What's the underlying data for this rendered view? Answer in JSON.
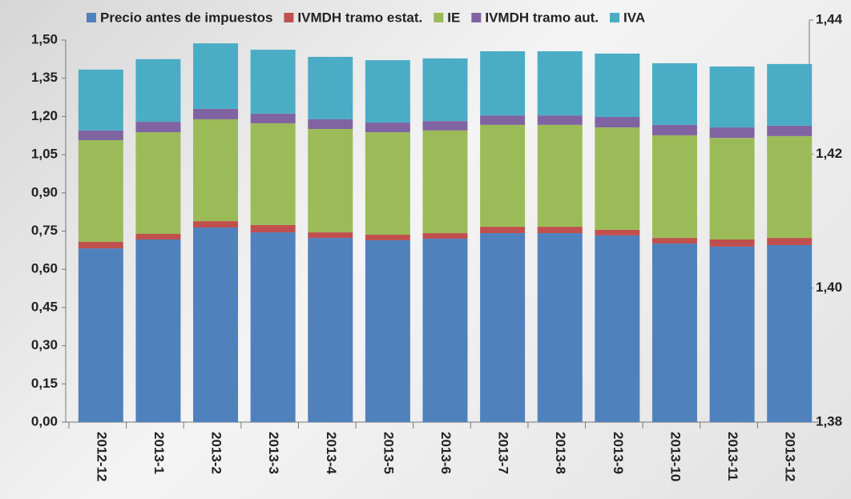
{
  "chart_data": {
    "type": "stacked_bar",
    "categories": [
      "2012-12",
      "2013-1",
      "2013-2",
      "2013-3",
      "2013-4",
      "2013-5",
      "2013-6",
      "2013-7",
      "2013-8",
      "2013-9",
      "2013-10",
      "2013-11",
      "2013-12"
    ],
    "series": [
      {
        "name": "Precio antes de impuestos",
        "color": "#4f81bd",
        "values": [
          0.682,
          0.717,
          0.764,
          0.745,
          0.723,
          0.714,
          0.72,
          0.742,
          0.742,
          0.733,
          0.701,
          0.689,
          0.695
        ]
      },
      {
        "name": "IVMDH tramo estat.",
        "color": "#c0504d",
        "values": [
          0.026,
          0.022,
          0.025,
          0.029,
          0.022,
          0.022,
          0.022,
          0.025,
          0.025,
          0.022,
          0.022,
          0.028,
          0.028
        ]
      },
      {
        "name": "IE",
        "color": "#9bbb59",
        "values": [
          0.399,
          0.399,
          0.4,
          0.399,
          0.406,
          0.402,
          0.403,
          0.4,
          0.4,
          0.402,
          0.403,
          0.399,
          0.4
        ]
      },
      {
        "name": "IVMDH tramo aut.",
        "color": "#8064a2",
        "values": [
          0.038,
          0.041,
          0.041,
          0.038,
          0.038,
          0.038,
          0.037,
          0.037,
          0.037,
          0.041,
          0.041,
          0.041,
          0.041
        ]
      },
      {
        "name": "IVA",
        "color": "#4bacc6",
        "values": [
          0.239,
          0.246,
          0.257,
          0.251,
          0.245,
          0.245,
          0.246,
          0.252,
          0.252,
          0.249,
          0.242,
          0.239,
          0.242
        ]
      }
    ],
    "ylim": [
      0,
      1.5
    ],
    "yticks": [
      {
        "value": 0,
        "label": "0,00"
      },
      {
        "value": 0.15,
        "label": "0,15"
      },
      {
        "value": 0.3,
        "label": "0,30"
      },
      {
        "value": 0.45,
        "label": "0,45"
      },
      {
        "value": 0.6,
        "label": "0,60"
      },
      {
        "value": 0.75,
        "label": "0,75"
      },
      {
        "value": 0.9,
        "label": "0,90"
      },
      {
        "value": 1.05,
        "label": "1,05"
      },
      {
        "value": 1.2,
        "label": "1,20"
      },
      {
        "value": 1.35,
        "label": "1,35"
      },
      {
        "value": 1.5,
        "label": "1,50"
      }
    ],
    "y2lim": [
      1.38,
      1.44
    ],
    "y2ticks": [
      {
        "value": 1.38,
        "label": "1,38"
      },
      {
        "value": 1.4,
        "label": "1,40"
      },
      {
        "value": 1.42,
        "label": "1,42"
      },
      {
        "value": 1.44,
        "label": "1,44"
      }
    ],
    "legend": "top"
  }
}
